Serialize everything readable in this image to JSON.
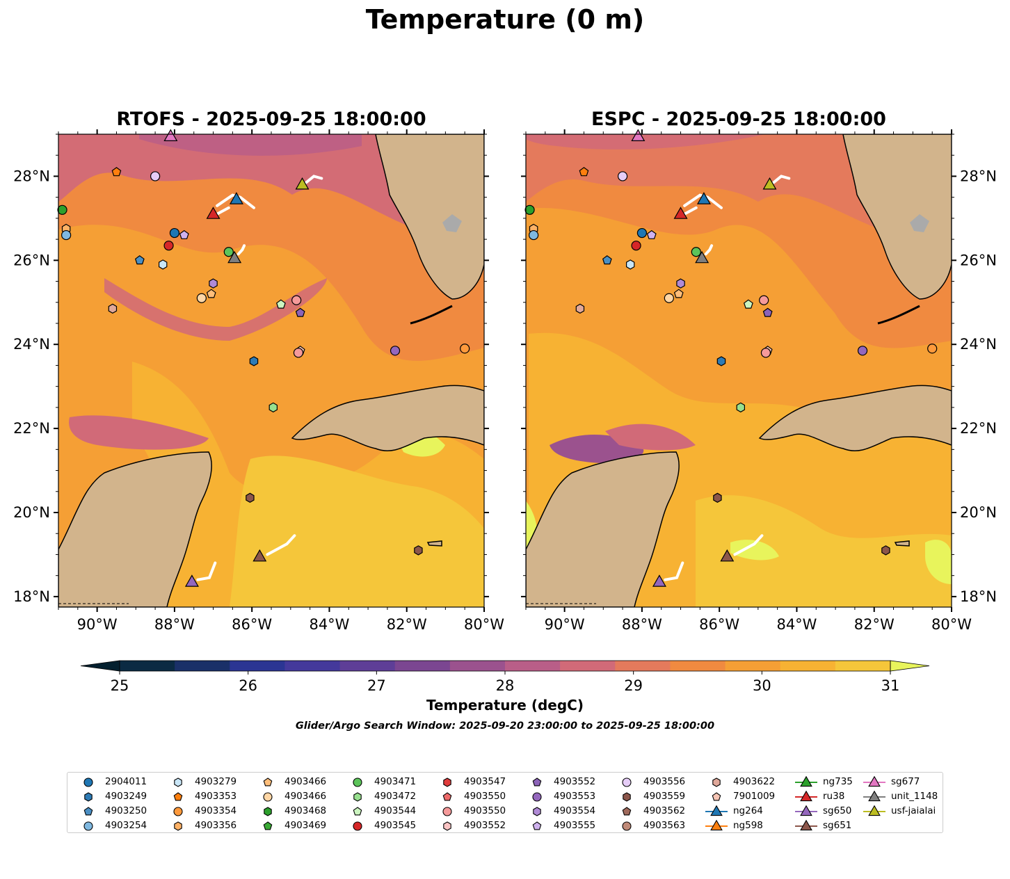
{
  "title": "Temperature (0 m)",
  "panels": [
    {
      "title": "RTOFS - 2025-09-25 18:00:00"
    },
    {
      "title": "ESPC - 2025-09-25 18:00:00"
    }
  ],
  "axes": {
    "lon_ticks": [
      "90°W",
      "88°W",
      "86°W",
      "84°W",
      "82°W",
      "80°W"
    ],
    "lat_ticks": [
      "28°N",
      "26°N",
      "24°N",
      "22°N",
      "20°N",
      "18°N"
    ]
  },
  "colorbar": {
    "label": "Temperature (degC)",
    "ticks": [
      "25",
      "26",
      "27",
      "28",
      "29",
      "30",
      "31"
    ],
    "min": 25,
    "max": 31,
    "step": 0.5,
    "colors": [
      "#0b2a43",
      "#1a3068",
      "#2b3593",
      "#44399b",
      "#5e3e97",
      "#7b4691",
      "#9b528e",
      "#b95e88",
      "#d16a78",
      "#e47a5c",
      "#f08a40",
      "#f59f35",
      "#f7b233",
      "#f5c63a",
      "#e8f45c"
    ],
    "under_color": "#04202f",
    "over_color": "#e8f45c"
  },
  "search_window": "Glider/Argo Search Window: 2025-09-20 23:00:00 to 2025-09-25 18:00:00",
  "legend": {
    "columns": [
      [
        {
          "label": "2904011",
          "marker": "circle",
          "color": "#1f77b4"
        },
        {
          "label": "4903249",
          "marker": "hexagon",
          "color": "#2e7bb5"
        },
        {
          "label": "4903250",
          "marker": "pentagon",
          "color": "#4a8fc4"
        },
        {
          "label": "4903254",
          "marker": "circle",
          "color": "#7fb8e0"
        }
      ],
      [
        {
          "label": "4903279",
          "marker": "hexagon",
          "color": "#c9e6f7"
        },
        {
          "label": "4903353",
          "marker": "pentagon",
          "color": "#ff7f0e"
        },
        {
          "label": "4903354",
          "marker": "circle",
          "color": "#ff9a3c"
        },
        {
          "label": "4903356",
          "marker": "hexagon",
          "color": "#ffb266"
        }
      ],
      [
        {
          "label": "4903466",
          "marker": "pentagon",
          "color": "#ffbe7a"
        },
        {
          "label": "4903466",
          "marker": "circle",
          "color": "#ffd6a5"
        },
        {
          "label": "4903468",
          "marker": "hexagon",
          "color": "#2ca02c"
        },
        {
          "label": "4903469",
          "marker": "pentagon",
          "color": "#3aaa35"
        }
      ],
      [
        {
          "label": "4903471",
          "marker": "circle",
          "color": "#5cc45a"
        },
        {
          "label": "4903472",
          "marker": "hexagon",
          "color": "#98e08f"
        },
        {
          "label": "4903544",
          "marker": "pentagon",
          "color": "#ccf5c0"
        },
        {
          "label": "4903545",
          "marker": "circle",
          "color": "#d62728"
        }
      ],
      [
        {
          "label": "4903547",
          "marker": "hexagon",
          "color": "#e03c3c"
        },
        {
          "label": "4903550",
          "marker": "pentagon",
          "color": "#ee6a6a"
        },
        {
          "label": "4903550",
          "marker": "circle",
          "color": "#f59a9a"
        },
        {
          "label": "4903552",
          "marker": "hexagon",
          "color": "#fbc4c4"
        }
      ],
      [
        {
          "label": "4903552",
          "marker": "pentagon",
          "color": "#8c63b8"
        },
        {
          "label": "4903553",
          "marker": "circle",
          "color": "#9467bd"
        },
        {
          "label": "4903554",
          "marker": "hexagon",
          "color": "#b08ad6"
        },
        {
          "label": "4903555",
          "marker": "pentagon",
          "color": "#cfb2ee"
        }
      ],
      [
        {
          "label": "4903556",
          "marker": "circle",
          "color": "#e6cdf7"
        },
        {
          "label": "4903559",
          "marker": "hexagon",
          "color": "#8c564b"
        },
        {
          "label": "4903562",
          "marker": "pentagon",
          "color": "#a06a5c"
        },
        {
          "label": "4903563",
          "marker": "circle",
          "color": "#c08a78"
        }
      ],
      [
        {
          "label": "4903622",
          "marker": "hexagon",
          "color": "#e0a89a"
        },
        {
          "label": "7901009",
          "marker": "pentagon",
          "color": "#f5c4b4"
        },
        {
          "label": "ng264",
          "marker": "triangle-line",
          "color": "#1f77b4"
        },
        {
          "label": "ng598",
          "marker": "triangle-line",
          "color": "#ff7f0e"
        }
      ],
      [
        {
          "label": "ng735",
          "marker": "triangle-line",
          "color": "#2ca02c"
        },
        {
          "label": "ru38",
          "marker": "triangle-line",
          "color": "#d62728"
        },
        {
          "label": "sg650",
          "marker": "triangle-line",
          "color": "#9467bd"
        },
        {
          "label": "sg651",
          "marker": "triangle-line",
          "color": "#8c564b"
        }
      ],
      [
        {
          "label": "sg677",
          "marker": "triangle-line",
          "color": "#e377c2"
        },
        {
          "label": "unit_1148",
          "marker": "triangle-line",
          "color": "#7f7f7f"
        },
        {
          "label": "usf-jaialai",
          "marker": "triangle-line",
          "color": "#bcbd22"
        }
      ]
    ]
  },
  "map_extent": {
    "lon_min": -91.0,
    "lon_max": -80.0,
    "lat_min": 17.75,
    "lat_max": 29.0
  },
  "observations": [
    {
      "lon": -90.9,
      "lat": 27.2,
      "marker": "circle",
      "color": "#2ca02c"
    },
    {
      "lon": -90.8,
      "lat": 26.75,
      "marker": "hexagon",
      "color": "#ffb266"
    },
    {
      "lon": -90.8,
      "lat": 26.6,
      "marker": "circle",
      "color": "#7fb8e0"
    },
    {
      "lon": -89.5,
      "lat": 28.1,
      "marker": "pentagon",
      "color": "#ff7f0e"
    },
    {
      "lon": -88.5,
      "lat": 28.0,
      "marker": "circle",
      "color": "#e6cdf7"
    },
    {
      "lon": -88.0,
      "lat": 26.65,
      "marker": "circle",
      "color": "#1f77b4"
    },
    {
      "lon": -87.75,
      "lat": 26.6,
      "marker": "pentagon",
      "color": "#cfb2ee"
    },
    {
      "lon": -88.15,
      "lat": 26.35,
      "marker": "circle",
      "color": "#d62728"
    },
    {
      "lon": -88.9,
      "lat": 26.0,
      "marker": "pentagon",
      "color": "#4a8fc4"
    },
    {
      "lon": -88.3,
      "lat": 25.9,
      "marker": "hexagon",
      "color": "#c9e6f7"
    },
    {
      "lon": -87.0,
      "lat": 25.45,
      "marker": "hexagon",
      "color": "#b08ad6"
    },
    {
      "lon": -87.05,
      "lat": 25.2,
      "marker": "pentagon",
      "color": "#ffbe7a"
    },
    {
      "lon": -87.3,
      "lat": 25.1,
      "marker": "circle",
      "color": "#ffd6a5"
    },
    {
      "lon": -86.6,
      "lat": 26.2,
      "marker": "circle",
      "color": "#5cc45a"
    },
    {
      "lon": -89.6,
      "lat": 24.85,
      "marker": "hexagon",
      "color": "#e0a89a"
    },
    {
      "lon": -85.25,
      "lat": 24.95,
      "marker": "pentagon",
      "color": "#ccf5c0"
    },
    {
      "lon": -84.85,
      "lat": 25.05,
      "marker": "circle",
      "color": "#f59a9a"
    },
    {
      "lon": -84.75,
      "lat": 24.75,
      "marker": "pentagon",
      "color": "#8c63b8"
    },
    {
      "lon": -84.75,
      "lat": 23.85,
      "marker": "pentagon",
      "color": "#f5c4b4"
    },
    {
      "lon": -84.8,
      "lat": 23.8,
      "marker": "circle",
      "color": "#f59a9a"
    },
    {
      "lon": -85.95,
      "lat": 23.6,
      "marker": "hexagon",
      "color": "#2e7bb5"
    },
    {
      "lon": -82.3,
      "lat": 23.85,
      "marker": "circle",
      "color": "#9467bd"
    },
    {
      "lon": -80.5,
      "lat": 23.9,
      "marker": "circle",
      "color": "#ff9a3c"
    },
    {
      "lon": -85.45,
      "lat": 22.5,
      "marker": "hexagon",
      "color": "#98e08f"
    },
    {
      "lon": -86.05,
      "lat": 20.35,
      "marker": "hexagon",
      "color": "#8c564b"
    },
    {
      "lon": -81.7,
      "lat": 19.1,
      "marker": "hexagon",
      "color": "#8c564b"
    }
  ],
  "gliders": [
    {
      "lon": -88.1,
      "lat": 28.95,
      "color": "#e377c2",
      "track": []
    },
    {
      "lon": -86.4,
      "lat": 27.45,
      "color": "#1f77b4",
      "track": [
        [
          -86.9,
          27.3
        ],
        [
          -86.5,
          27.55
        ],
        [
          -86.3,
          27.5
        ],
        [
          -85.95,
          27.25
        ]
      ]
    },
    {
      "lon": -87.0,
      "lat": 27.1,
      "color": "#d62728",
      "track": [
        [
          -86.9,
          27.1
        ],
        [
          -86.6,
          27.25
        ]
      ]
    },
    {
      "lon": -84.7,
      "lat": 27.8,
      "color": "#bcbd22",
      "track": [
        [
          -84.6,
          27.85
        ],
        [
          -84.4,
          28.0
        ],
        [
          -84.2,
          27.95
        ]
      ]
    },
    {
      "lon": -86.45,
      "lat": 26.05,
      "color": "#7f7f7f",
      "track": [
        [
          -86.35,
          26.15
        ],
        [
          -86.25,
          26.25
        ],
        [
          -86.2,
          26.35
        ]
      ]
    },
    {
      "lon": -85.8,
      "lat": 18.95,
      "color": "#8c564b",
      "track": [
        [
          -85.6,
          19.0
        ],
        [
          -85.1,
          19.25
        ],
        [
          -84.9,
          19.45
        ]
      ]
    },
    {
      "lon": -87.55,
      "lat": 18.35,
      "color": "#9467bd",
      "track": [
        [
          -87.4,
          18.4
        ],
        [
          -87.1,
          18.45
        ],
        [
          -86.95,
          18.8
        ]
      ]
    }
  ]
}
